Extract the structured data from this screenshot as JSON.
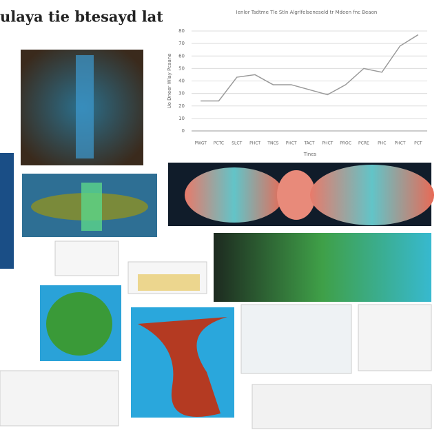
{
  "header": {
    "title": "ulaya tie btesayd latal"
  },
  "chart_data": {
    "type": "line",
    "title": "Ienlor Tsdtme Tle Stln Algrlfelseneseld tr Mdeen fnc Beaon",
    "xlabel": "Tines",
    "ylabel": "Uo Dneer Wlay Pcaane",
    "categories": [
      "PWGT",
      "PCTC",
      "SLCT",
      "PHCT",
      "TNCS",
      "PHCT",
      "TACT",
      "PHCT",
      "PROC",
      "PCRE",
      "PHC",
      "PHCT",
      "PCT"
    ],
    "values": [
      24,
      24,
      43,
      45,
      37,
      37,
      33,
      29,
      37,
      50,
      47,
      68,
      77
    ],
    "color": "#9a9a9a",
    "ylim": [
      0,
      80
    ],
    "yticks": [
      0,
      10,
      20,
      30,
      40,
      50,
      60,
      70,
      80
    ],
    "grid": true
  }
}
